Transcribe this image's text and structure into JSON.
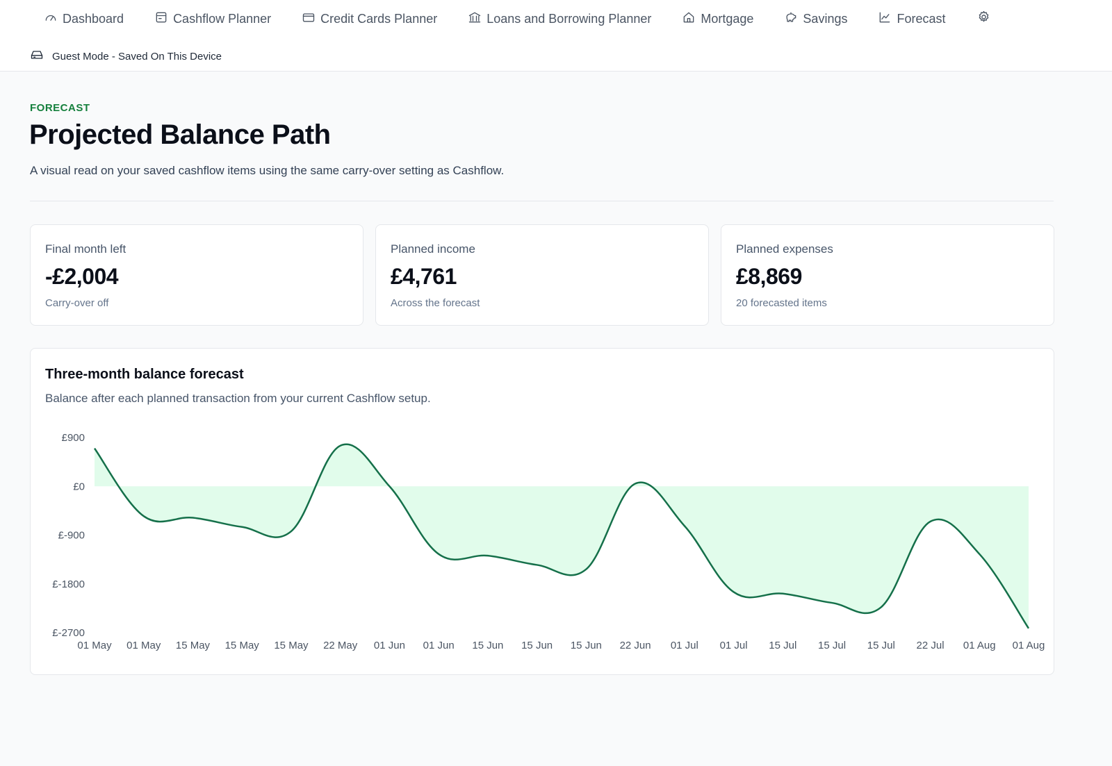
{
  "nav": {
    "items": [
      {
        "label": "Dashboard",
        "icon": "gauge-icon"
      },
      {
        "label": "Cashflow Planner",
        "icon": "wallet-icon"
      },
      {
        "label": "Credit Cards Planner",
        "icon": "credit-card-icon"
      },
      {
        "label": "Loans and Borrowing Planner",
        "icon": "bank-icon"
      },
      {
        "label": "Mortgage",
        "icon": "home-icon"
      },
      {
        "label": "Savings",
        "icon": "piggy-bank-icon"
      },
      {
        "label": "Forecast",
        "icon": "line-chart-icon"
      }
    ],
    "settings_icon": "gear-icon"
  },
  "guest": {
    "label": "Guest Mode - Saved On This Device",
    "icon": "hard-drive-icon"
  },
  "header": {
    "eyebrow": "FORECAST",
    "title": "Projected Balance Path",
    "subtitle": "A visual read on your saved cashflow items using the same carry-over setting as Cashflow."
  },
  "stats": [
    {
      "label": "Final month left",
      "value": "-£2,004",
      "note": "Carry-over off"
    },
    {
      "label": "Planned income",
      "value": "£4,761",
      "note": "Across the forecast"
    },
    {
      "label": "Planned expenses",
      "value": "£8,869",
      "note": "20 forecasted items"
    }
  ],
  "chart_card": {
    "title": "Three-month balance forecast",
    "subtitle": "Balance after each planned transaction from your current Cashflow setup."
  },
  "colors": {
    "line": "#15704a",
    "fill": "#dcfce7",
    "accent": "#15803d"
  },
  "chart_data": {
    "type": "area",
    "x": [
      "01 May",
      "01 May",
      "15 May",
      "15 May",
      "15 May",
      "22 May",
      "01 Jun",
      "01 Jun",
      "15 Jun",
      "15 Jun",
      "15 Jun",
      "22 Jun",
      "01 Jul",
      "01 Jul",
      "15 Jul",
      "15 Jul",
      "15 Jul",
      "22 Jul",
      "01 Aug",
      "01 Aug"
    ],
    "values": [
      700,
      -550,
      -580,
      -750,
      -830,
      750,
      0,
      -1250,
      -1280,
      -1450,
      -1530,
      50,
      -730,
      -1950,
      -1980,
      -2150,
      -2230,
      -650,
      -1250,
      -2620
    ],
    "yticks": [
      "£900",
      "£0",
      "£-900",
      "£-1800",
      "£-2700"
    ],
    "ylim": [
      -2700,
      900
    ],
    "baseline": 0,
    "xlabel": "",
    "ylabel": "",
    "legend": "none",
    "grid": false
  }
}
